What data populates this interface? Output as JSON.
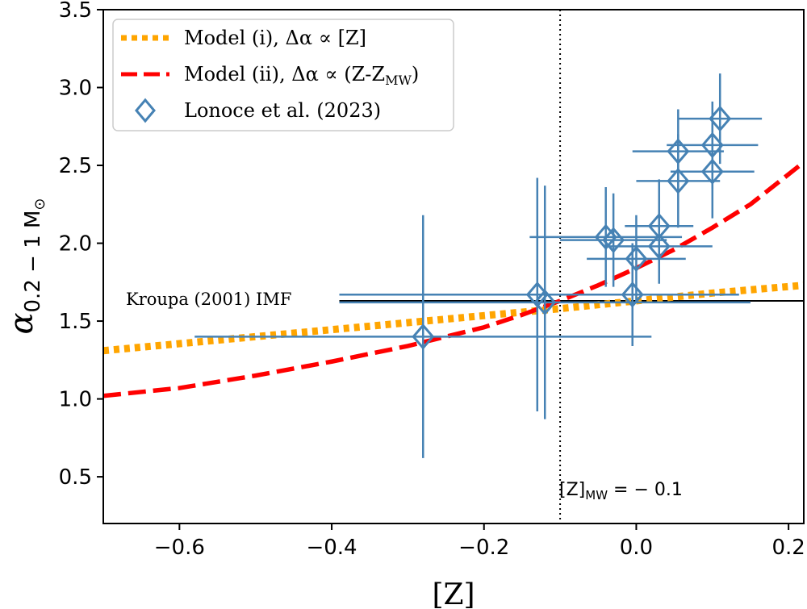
{
  "chart_data": {
    "type": "scatter",
    "xlabel": "[Z]",
    "ylabel": "α",
    "ylabel_sub": "0.2 − 1 M",
    "ylabel_sub_sym": "⊙",
    "xlim": [
      -0.7,
      0.22
    ],
    "ylim": [
      0.2,
      3.5
    ],
    "xticks": [
      -0.6,
      -0.4,
      -0.2,
      0.0,
      0.2
    ],
    "xtick_labels": [
      "−0.6",
      "−0.4",
      "−0.2",
      "0.0",
      "0.2"
    ],
    "yticks": [
      0.5,
      1.0,
      1.5,
      2.0,
      2.5,
      3.0,
      3.5
    ],
    "ytick_labels": [
      "0.5",
      "1.0",
      "1.5",
      "2.0",
      "2.5",
      "3.0",
      "3.5"
    ],
    "grid": false,
    "legend": {
      "position": "top-left",
      "entries": [
        {
          "label": "Model (i), Δα ∝ [Z]",
          "style": "dotted",
          "color": "#FFA500"
        },
        {
          "label": "Model (ii), Δα ∝ (Z-Z",
          "label_sub": "MW",
          "label_tail": ")",
          "style": "dashed",
          "color": "#FF0000"
        },
        {
          "label": "Lonoce et al. (2023)",
          "style": "diamond",
          "color": "#4682B4"
        }
      ]
    },
    "series": [
      {
        "name": "Model (i), Δα ∝ [Z]",
        "kind": "line",
        "color": "#FFA500",
        "x": [
          -0.7,
          -0.5,
          -0.3,
          -0.1,
          0.1,
          0.22
        ],
        "y": [
          1.31,
          1.4,
          1.49,
          1.58,
          1.68,
          1.73
        ]
      },
      {
        "name": "Model (ii), Δα ∝ (Z-ZMW)",
        "kind": "line",
        "color": "#FF0000",
        "x": [
          -0.7,
          -0.6,
          -0.5,
          -0.4,
          -0.3,
          -0.2,
          -0.15,
          -0.1,
          -0.05,
          0.0,
          0.05,
          0.1,
          0.15,
          0.22
        ],
        "y": [
          1.02,
          1.07,
          1.15,
          1.24,
          1.34,
          1.46,
          1.54,
          1.63,
          1.73,
          1.84,
          1.96,
          2.1,
          2.25,
          2.52
        ]
      },
      {
        "name": "Lonoce et al. (2023)",
        "kind": "errorbar",
        "color": "#4682B4",
        "points": [
          {
            "x": -0.28,
            "y": 1.4,
            "xerr": 0.3,
            "yerr": 0.78
          },
          {
            "x": -0.13,
            "y": 1.67,
            "xerr": 0.26,
            "yerr": 0.75
          },
          {
            "x": -0.12,
            "y": 1.62,
            "xerr": 0.27,
            "yerr": 0.75
          },
          {
            "x": -0.04,
            "y": 2.04,
            "xerr": 0.1,
            "yerr": 0.32
          },
          {
            "x": -0.03,
            "y": 2.02,
            "xerr": 0.07,
            "yerr": 0.3
          },
          {
            "x": -0.005,
            "y": 1.67,
            "xerr": 0.14,
            "yerr": 0.33
          },
          {
            "x": 0.0,
            "y": 1.9,
            "xerr": 0.065,
            "yerr": 0.28
          },
          {
            "x": 0.03,
            "y": 1.98,
            "xerr": 0.07,
            "yerr": 0.24
          },
          {
            "x": 0.03,
            "y": 2.11,
            "xerr": 0.045,
            "yerr": 0.3
          },
          {
            "x": 0.055,
            "y": 2.4,
            "xerr": 0.055,
            "yerr": 0.3
          },
          {
            "x": 0.055,
            "y": 2.59,
            "xerr": 0.06,
            "yerr": 0.27
          },
          {
            "x": 0.1,
            "y": 2.46,
            "xerr": 0.055,
            "yerr": 0.3
          },
          {
            "x": 0.1,
            "y": 2.63,
            "xerr": 0.06,
            "yerr": 0.28
          },
          {
            "x": 0.11,
            "y": 2.8,
            "xerr": 0.055,
            "yerr": 0.29
          }
        ]
      }
    ],
    "reference_lines": [
      {
        "orientation": "horizontal",
        "y": 1.63,
        "color": "#000000",
        "style": "solid",
        "label": "Kroupa (2001) IMF"
      },
      {
        "orientation": "vertical",
        "x": -0.1,
        "color": "#000000",
        "style": "dotted",
        "label": "[Z]",
        "label_sub": "MW",
        "label_tail": " = − 0.1"
      }
    ]
  }
}
